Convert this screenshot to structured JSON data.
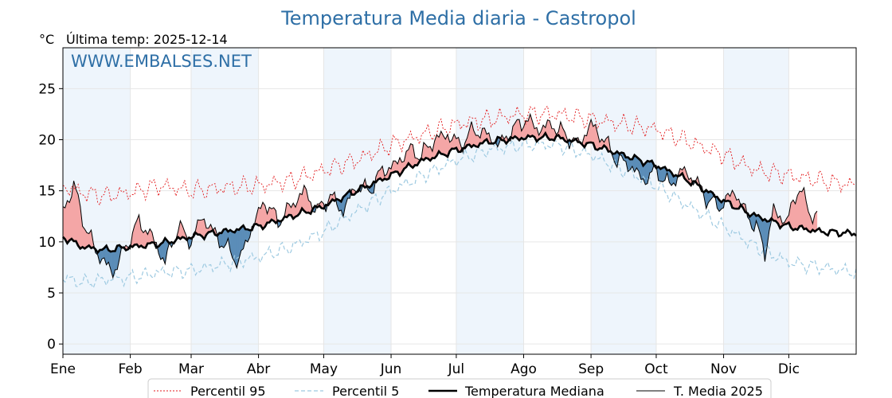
{
  "chart_data": {
    "type": "line",
    "title": "Temperatura Media diaria - Castropol",
    "unit_label": "°C",
    "subtitle": "Última temp: 2025-12-14",
    "watermark": "WWW.EMBALSES.NET",
    "x_ticks": [
      {
        "label": "Ene",
        "day": 1
      },
      {
        "label": "Feb",
        "day": 32
      },
      {
        "label": "Mar",
        "day": 60
      },
      {
        "label": "Abr",
        "day": 91
      },
      {
        "label": "May",
        "day": 121
      },
      {
        "label": "Jun",
        "day": 152
      },
      {
        "label": "Jul",
        "day": 182
      },
      {
        "label": "Ago",
        "day": 213
      },
      {
        "label": "Sep",
        "day": 244
      },
      {
        "label": "Oct",
        "day": 274
      },
      {
        "label": "Nov",
        "day": 305
      },
      {
        "label": "Dic",
        "day": 335
      }
    ],
    "xlim": [
      1,
      366
    ],
    "y_ticks": [
      0,
      5,
      10,
      15,
      20,
      25
    ],
    "ylim": [
      -1,
      29
    ],
    "grid": true,
    "legend_position": "bottom",
    "colors": {
      "p95": "#e31a1c",
      "p5": "#9ecae1",
      "median": "#000000",
      "current": "#000000",
      "above": "#f4a6a6",
      "below": "#5b8db8",
      "band": "#eef5fc"
    },
    "series": [
      {
        "name": "Percentil 95",
        "style": "dotted",
        "anchors": [
          [
            1,
            15.5
          ],
          [
            10,
            14.8
          ],
          [
            20,
            14.5
          ],
          [
            32,
            14.8
          ],
          [
            45,
            15.5
          ],
          [
            60,
            15.0
          ],
          [
            75,
            15.3
          ],
          [
            91,
            15.5
          ],
          [
            106,
            16.0
          ],
          [
            121,
            17.0
          ],
          [
            136,
            18.0
          ],
          [
            152,
            19.5
          ],
          [
            167,
            20.5
          ],
          [
            182,
            21.5
          ],
          [
            197,
            22.0
          ],
          [
            213,
            22.5
          ],
          [
            228,
            22.5
          ],
          [
            244,
            22.0
          ],
          [
            259,
            21.5
          ],
          [
            274,
            21.0
          ],
          [
            289,
            19.8
          ],
          [
            305,
            18.5
          ],
          [
            320,
            17.0
          ],
          [
            335,
            16.5
          ],
          [
            350,
            16.0
          ],
          [
            366,
            15.5
          ]
        ]
      },
      {
        "name": "Percentil 5",
        "style": "dashed",
        "anchors": [
          [
            1,
            6.5
          ],
          [
            10,
            6.0
          ],
          [
            20,
            6.3
          ],
          [
            32,
            6.5
          ],
          [
            45,
            7.0
          ],
          [
            60,
            7.2
          ],
          [
            75,
            7.8
          ],
          [
            91,
            8.5
          ],
          [
            106,
            9.5
          ],
          [
            121,
            11.0
          ],
          [
            136,
            13.0
          ],
          [
            152,
            15.0
          ],
          [
            167,
            16.5
          ],
          [
            182,
            18.0
          ],
          [
            197,
            19.0
          ],
          [
            213,
            19.5
          ],
          [
            228,
            19.5
          ],
          [
            244,
            18.5
          ],
          [
            259,
            17.0
          ],
          [
            274,
            15.5
          ],
          [
            289,
            13.5
          ],
          [
            305,
            11.5
          ],
          [
            320,
            9.5
          ],
          [
            335,
            8.0
          ],
          [
            350,
            7.5
          ],
          [
            366,
            7.0
          ]
        ]
      },
      {
        "name": "Temperatura Mediana",
        "style": "solid-thick",
        "anchors": [
          [
            1,
            10.5
          ],
          [
            10,
            9.5
          ],
          [
            20,
            9.2
          ],
          [
            32,
            9.5
          ],
          [
            45,
            9.8
          ],
          [
            60,
            10.5
          ],
          [
            75,
            11.0
          ],
          [
            91,
            11.5
          ],
          [
            106,
            12.5
          ],
          [
            121,
            13.5
          ],
          [
            136,
            15.0
          ],
          [
            152,
            16.5
          ],
          [
            167,
            18.0
          ],
          [
            182,
            19.0
          ],
          [
            197,
            19.8
          ],
          [
            213,
            20.2
          ],
          [
            228,
            20.2
          ],
          [
            244,
            19.5
          ],
          [
            259,
            18.5
          ],
          [
            274,
            17.5
          ],
          [
            289,
            16.0
          ],
          [
            305,
            14.0
          ],
          [
            320,
            12.5
          ],
          [
            335,
            11.5
          ],
          [
            350,
            11.0
          ],
          [
            366,
            10.8
          ]
        ]
      },
      {
        "name": "T. Media 2025",
        "style": "solid-thin",
        "end_day": 348,
        "anchors": [
          [
            1,
            13.0
          ],
          [
            6,
            15.5
          ],
          [
            12,
            11.0
          ],
          [
            18,
            8.5
          ],
          [
            24,
            7.0
          ],
          [
            30,
            9.5
          ],
          [
            36,
            12.0
          ],
          [
            42,
            10.5
          ],
          [
            48,
            8.0
          ],
          [
            54,
            11.5
          ],
          [
            60,
            10.0
          ],
          [
            65,
            12.5
          ],
          [
            70,
            11.0
          ],
          [
            76,
            9.5
          ],
          [
            82,
            8.0
          ],
          [
            88,
            11.5
          ],
          [
            94,
            14.0
          ],
          [
            100,
            12.0
          ],
          [
            106,
            13.5
          ],
          [
            112,
            15.0
          ],
          [
            118,
            13.0
          ],
          [
            124,
            14.5
          ],
          [
            130,
            13.0
          ],
          [
            136,
            15.5
          ],
          [
            142,
            15.0
          ],
          [
            148,
            17.0
          ],
          [
            154,
            17.5
          ],
          [
            160,
            19.0
          ],
          [
            166,
            18.5
          ],
          [
            172,
            20.0
          ],
          [
            178,
            20.5
          ],
          [
            184,
            19.5
          ],
          [
            190,
            21.0
          ],
          [
            196,
            20.5
          ],
          [
            202,
            19.5
          ],
          [
            208,
            21.0
          ],
          [
            214,
            22.0
          ],
          [
            220,
            21.0
          ],
          [
            226,
            21.5
          ],
          [
            232,
            20.5
          ],
          [
            238,
            19.5
          ],
          [
            244,
            21.5
          ],
          [
            250,
            20.0
          ],
          [
            256,
            18.0
          ],
          [
            262,
            17.5
          ],
          [
            268,
            16.0
          ],
          [
            274,
            17.0
          ],
          [
            280,
            15.5
          ],
          [
            286,
            17.0
          ],
          [
            292,
            16.0
          ],
          [
            298,
            14.0
          ],
          [
            304,
            13.5
          ],
          [
            310,
            15.0
          ],
          [
            316,
            12.5
          ],
          [
            320,
            11.5
          ],
          [
            324,
            9.0
          ],
          [
            328,
            13.0
          ],
          [
            334,
            12.0
          ],
          [
            340,
            15.5
          ],
          [
            344,
            13.0
          ],
          [
            348,
            12.5
          ]
        ]
      }
    ]
  }
}
